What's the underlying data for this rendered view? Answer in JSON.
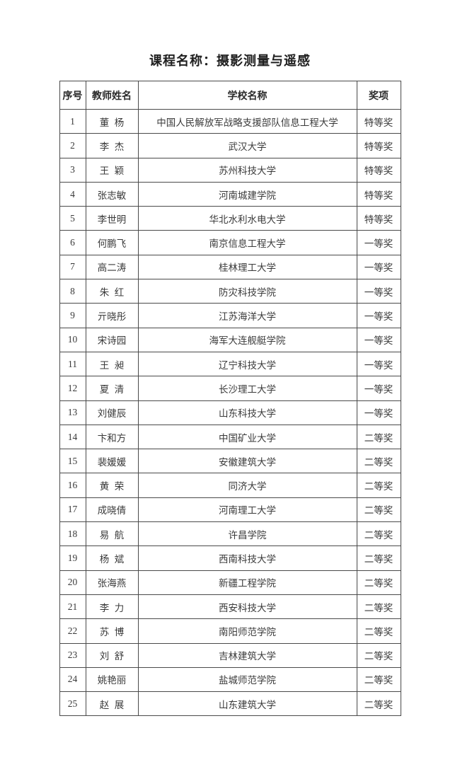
{
  "page": {
    "title": "课程名称：摄影测量与遥感"
  },
  "table": {
    "headers": [
      "序号",
      "教师姓名",
      "学校名称",
      "奖项"
    ],
    "rows": [
      [
        "1",
        "董杨",
        "中国人民解放军战略支援部队信息工程大学",
        "特等奖"
      ],
      [
        "2",
        "李杰",
        "武汉大学",
        "特等奖"
      ],
      [
        "3",
        "王颖",
        "苏州科技大学",
        "特等奖"
      ],
      [
        "4",
        "张志敏",
        "河南城建学院",
        "特等奖"
      ],
      [
        "5",
        "李世明",
        "华北水利水电大学",
        "特等奖"
      ],
      [
        "6",
        "何鹏飞",
        "南京信息工程大学",
        "一等奖"
      ],
      [
        "7",
        "高二涛",
        "桂林理工大学",
        "一等奖"
      ],
      [
        "8",
        "朱红",
        "防灾科技学院",
        "一等奖"
      ],
      [
        "9",
        "亓晓彤",
        "江苏海洋大学",
        "一等奖"
      ],
      [
        "10",
        "宋诗园",
        "海军大连舰艇学院",
        "一等奖"
      ],
      [
        "11",
        "王昶",
        "辽宁科技大学",
        "一等奖"
      ],
      [
        "12",
        "夏清",
        "长沙理工大学",
        "一等奖"
      ],
      [
        "13",
        "刘健辰",
        "山东科技大学",
        "一等奖"
      ],
      [
        "14",
        "卞和方",
        "中国矿业大学",
        "二等奖"
      ],
      [
        "15",
        "裴媛媛",
        "安徽建筑大学",
        "二等奖"
      ],
      [
        "16",
        "黄荣",
        "同济大学",
        "二等奖"
      ],
      [
        "17",
        "成晓倩",
        "河南理工大学",
        "二等奖"
      ],
      [
        "18",
        "易航",
        "许昌学院",
        "二等奖"
      ],
      [
        "19",
        "杨斌",
        "西南科技大学",
        "二等奖"
      ],
      [
        "20",
        "张海燕",
        "新疆工程学院",
        "二等奖"
      ],
      [
        "21",
        "李力",
        "西安科技大学",
        "二等奖"
      ],
      [
        "22",
        "苏博",
        "南阳师范学院",
        "二等奖"
      ],
      [
        "23",
        "刘舒",
        "吉林建筑大学",
        "二等奖"
      ],
      [
        "24",
        "姚艳丽",
        "盐城师范学院",
        "二等奖"
      ],
      [
        "25",
        "赵展",
        "山东建筑大学",
        "二等奖"
      ]
    ]
  }
}
